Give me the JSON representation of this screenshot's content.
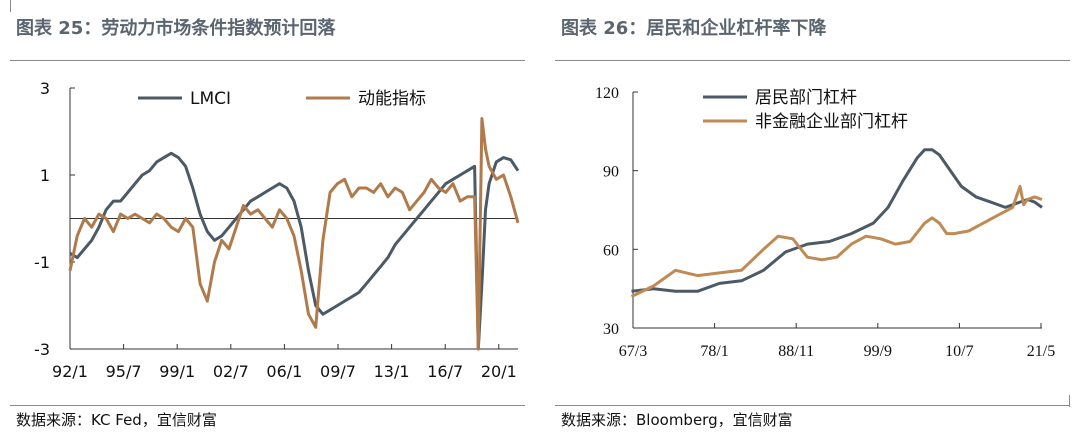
{
  "charts": [
    {
      "title": "图表 25：劳动力市场条件指数预计回落",
      "source": "数据来源：KC Fed，宜信财富"
    },
    {
      "title": "图表 26：居民和企业杠杆率下降",
      "source": "数据来源：Bloomberg，宜信财富"
    }
  ],
  "chart_data": [
    {
      "type": "line",
      "title": "图表 25：劳动力市场条件指数预计回落",
      "xlabel": "",
      "ylabel": "",
      "x_ticks": [
        "92/1",
        "95/7",
        "99/1",
        "02/7",
        "06/1",
        "09/7",
        "13/1",
        "16/7",
        "20/1"
      ],
      "y_ticks": [
        "3",
        "1",
        "-1",
        "-3"
      ],
      "ylim": [
        -3,
        3
      ],
      "xlim": [
        1992.0,
        2023.0
      ],
      "zero_line": true,
      "legend": "top",
      "series": [
        {
          "name": "LMCI",
          "color": "#4b5a66",
          "x": [
            1992.0,
            1992.5,
            1993.0,
            1993.5,
            1994.0,
            1994.5,
            1995.0,
            1995.5,
            1996.0,
            1996.5,
            1997.0,
            1997.5,
            1998.0,
            1998.5,
            1999.0,
            1999.5,
            2000.0,
            2000.5,
            2001.0,
            2001.5,
            2002.0,
            2002.5,
            2003.0,
            2003.5,
            2004.0,
            2004.5,
            2005.0,
            2005.5,
            2006.0,
            2006.5,
            2007.0,
            2007.5,
            2008.0,
            2008.5,
            2009.0,
            2009.5,
            2010.0,
            2010.5,
            2011.0,
            2011.5,
            2012.0,
            2012.5,
            2013.0,
            2013.5,
            2014.0,
            2014.5,
            2015.0,
            2015.5,
            2016.0,
            2016.5,
            2017.0,
            2017.5,
            2018.0,
            2018.5,
            2019.0,
            2019.5,
            2020.0,
            2020.25,
            2020.5,
            2020.75,
            2021.0,
            2021.5,
            2022.0,
            2022.5,
            2023.0
          ],
          "y": [
            -0.8,
            -0.9,
            -0.7,
            -0.5,
            -0.2,
            0.2,
            0.4,
            0.4,
            0.6,
            0.8,
            1.0,
            1.1,
            1.3,
            1.4,
            1.5,
            1.4,
            1.2,
            0.7,
            0.1,
            -0.3,
            -0.5,
            -0.4,
            -0.2,
            0.0,
            0.2,
            0.4,
            0.5,
            0.6,
            0.7,
            0.8,
            0.7,
            0.4,
            -0.2,
            -1.2,
            -2.0,
            -2.2,
            -2.1,
            -2.0,
            -1.9,
            -1.8,
            -1.7,
            -1.5,
            -1.3,
            -1.1,
            -0.9,
            -0.6,
            -0.4,
            -0.2,
            0.0,
            0.2,
            0.4,
            0.6,
            0.8,
            0.9,
            1.0,
            1.1,
            1.2,
            -3.0,
            -1.5,
            0.2,
            0.8,
            1.3,
            1.4,
            1.35,
            1.1
          ]
        },
        {
          "name": "动能指标",
          "color": "#b07a4a",
          "x": [
            1992.0,
            1992.5,
            1993.0,
            1993.5,
            1994.0,
            1994.5,
            1995.0,
            1995.5,
            1996.0,
            1996.5,
            1997.0,
            1997.5,
            1998.0,
            1998.5,
            1999.0,
            1999.5,
            2000.0,
            2000.5,
            2001.0,
            2001.5,
            2002.0,
            2002.5,
            2003.0,
            2003.5,
            2004.0,
            2004.5,
            2005.0,
            2005.5,
            2006.0,
            2006.5,
            2007.0,
            2007.5,
            2008.0,
            2008.5,
            2009.0,
            2009.5,
            2010.0,
            2010.5,
            2011.0,
            2011.5,
            2012.0,
            2012.5,
            2013.0,
            2013.5,
            2014.0,
            2014.5,
            2015.0,
            2015.5,
            2016.0,
            2016.5,
            2017.0,
            2017.5,
            2018.0,
            2018.5,
            2019.0,
            2019.5,
            2020.0,
            2020.25,
            2020.5,
            2020.75,
            2021.0,
            2021.5,
            2022.0,
            2022.5,
            2023.0
          ],
          "y": [
            -1.2,
            -0.4,
            0.0,
            -0.2,
            0.1,
            0.0,
            -0.3,
            0.1,
            0.0,
            0.1,
            0.0,
            -0.1,
            0.1,
            0.0,
            -0.2,
            -0.3,
            0.0,
            -0.2,
            -1.5,
            -1.9,
            -1.0,
            -0.5,
            -0.7,
            -0.2,
            0.3,
            0.1,
            0.2,
            0.0,
            -0.2,
            0.2,
            0.0,
            -0.4,
            -1.2,
            -2.2,
            -2.5,
            -0.5,
            0.6,
            0.8,
            0.9,
            0.5,
            0.7,
            0.7,
            0.6,
            0.8,
            0.5,
            0.7,
            0.6,
            0.2,
            0.4,
            0.6,
            0.9,
            0.7,
            0.6,
            0.8,
            0.4,
            0.5,
            0.5,
            -3.0,
            2.3,
            1.6,
            1.2,
            0.9,
            1.0,
            0.5,
            -0.1
          ]
        }
      ]
    },
    {
      "type": "line",
      "title": "图表 26：居民和企业杠杆率下降",
      "xlabel": "",
      "ylabel": "",
      "x_ticks": [
        "67/3",
        "78/1",
        "88/11",
        "99/9",
        "10/7",
        "21/5"
      ],
      "y_ticks": [
        "120",
        "90",
        "60",
        "30"
      ],
      "ylim": [
        30,
        120
      ],
      "xlim": [
        1967.2,
        2023.0
      ],
      "legend": "top-left",
      "series": [
        {
          "name": "居民部门杠杆",
          "color": "#4b5a66",
          "x": [
            1967,
            1970,
            1973,
            1976,
            1979,
            1982,
            1985,
            1988,
            1991,
            1994,
            1997,
            2000,
            2002,
            2004,
            2006,
            2007,
            2008,
            2009,
            2010,
            2011,
            2012,
            2014,
            2016,
            2018,
            2020,
            2021,
            2022,
            2023
          ],
          "y": [
            44,
            45,
            44,
            44,
            47,
            48,
            52,
            59,
            62,
            63,
            66,
            70,
            76,
            86,
            95,
            98,
            98,
            96,
            92,
            88,
            84,
            80,
            78,
            76,
            78,
            79,
            78,
            76
          ]
        },
        {
          "name": "非金融企业部门杠杆",
          "color": "#c08a55",
          "x": [
            1967,
            1970,
            1973,
            1976,
            1979,
            1982,
            1985,
            1987,
            1989,
            1991,
            1993,
            1995,
            1997,
            1999,
            2001,
            2003,
            2005,
            2007,
            2008,
            2009,
            2010,
            2011,
            2013,
            2015,
            2017,
            2019,
            2020,
            2020.5,
            2021,
            2022,
            2023
          ],
          "y": [
            42,
            46,
            52,
            50,
            51,
            52,
            60,
            65,
            64,
            57,
            56,
            57,
            62,
            65,
            64,
            62,
            63,
            70,
            72,
            70,
            66,
            66,
            67,
            70,
            73,
            76,
            84,
            77,
            79,
            80,
            79
          ]
        }
      ]
    }
  ]
}
